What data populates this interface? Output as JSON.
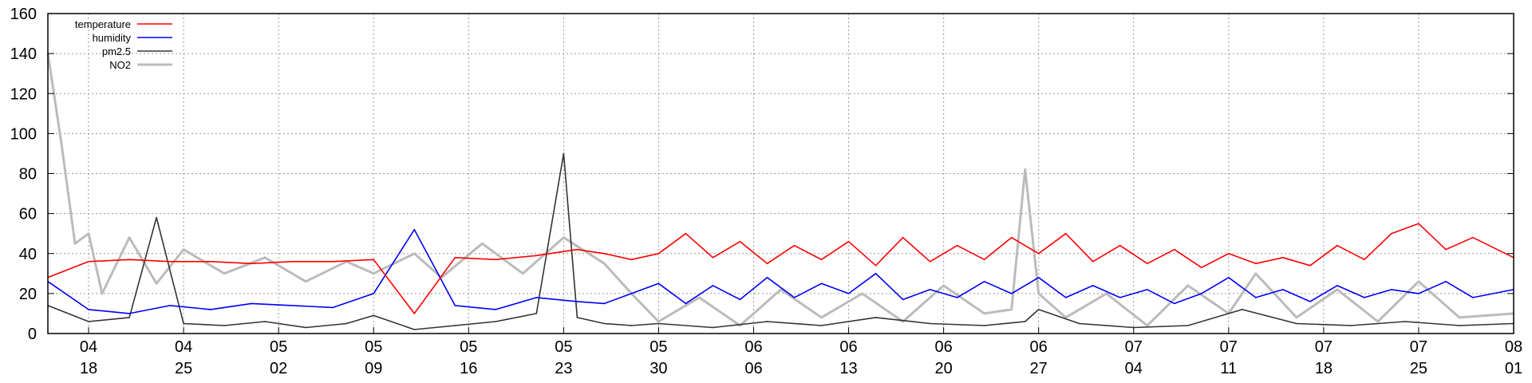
{
  "chart_data": {
    "type": "line",
    "title": "",
    "xlabel": "",
    "ylabel": "",
    "ylim": [
      0,
      160
    ],
    "y_ticks": [
      "0",
      "20",
      "40",
      "60",
      "80",
      "100",
      "120",
      "140",
      "160"
    ],
    "x_domain": [
      "2021-04-15",
      "2021-08-01"
    ],
    "x_ticks": [
      {
        "date": "2021-04-18",
        "month": "04",
        "day": "18"
      },
      {
        "date": "2021-04-25",
        "month": "04",
        "day": "25"
      },
      {
        "date": "2021-05-02",
        "month": "05",
        "day": "02"
      },
      {
        "date": "2021-05-09",
        "month": "05",
        "day": "09"
      },
      {
        "date": "2021-05-16",
        "month": "05",
        "day": "16"
      },
      {
        "date": "2021-05-23",
        "month": "05",
        "day": "23"
      },
      {
        "date": "2021-05-30",
        "month": "05",
        "day": "30"
      },
      {
        "date": "2021-06-06",
        "month": "06",
        "day": "06"
      },
      {
        "date": "2021-06-13",
        "month": "06",
        "day": "13"
      },
      {
        "date": "2021-06-20",
        "month": "06",
        "day": "20"
      },
      {
        "date": "2021-06-27",
        "month": "06",
        "day": "27"
      },
      {
        "date": "2021-07-04",
        "month": "07",
        "day": "04"
      },
      {
        "date": "2021-07-11",
        "month": "07",
        "day": "11"
      },
      {
        "date": "2021-07-18",
        "month": "07",
        "day": "18"
      },
      {
        "date": "2021-07-25",
        "month": "07",
        "day": "25"
      },
      {
        "date": "2021-08-01",
        "month": "08",
        "day": "01"
      }
    ],
    "grid": true,
    "legend_position": "top-left",
    "series": [
      {
        "name": "temperature",
        "color": "#ff0000",
        "x": [
          "2021-04-15",
          "2021-04-18",
          "2021-04-21",
          "2021-04-24",
          "2021-04-27",
          "2021-04-30",
          "2021-05-03",
          "2021-05-06",
          "2021-05-09",
          "2021-05-12",
          "2021-05-15",
          "2021-05-18",
          "2021-05-21",
          "2021-05-24",
          "2021-05-26",
          "2021-05-28",
          "2021-05-30",
          "2021-06-01",
          "2021-06-03",
          "2021-06-05",
          "2021-06-07",
          "2021-06-09",
          "2021-06-11",
          "2021-06-13",
          "2021-06-15",
          "2021-06-17",
          "2021-06-19",
          "2021-06-21",
          "2021-06-23",
          "2021-06-25",
          "2021-06-27",
          "2021-06-29",
          "2021-07-01",
          "2021-07-03",
          "2021-07-05",
          "2021-07-07",
          "2021-07-09",
          "2021-07-11",
          "2021-07-13",
          "2021-07-15",
          "2021-07-17",
          "2021-07-19",
          "2021-07-21",
          "2021-07-23",
          "2021-07-25",
          "2021-07-27",
          "2021-07-29",
          "2021-08-01"
        ],
        "values": [
          28,
          36,
          37,
          36,
          36,
          35,
          36,
          36,
          37,
          10,
          38,
          37,
          39,
          42,
          40,
          37,
          40,
          50,
          38,
          46,
          35,
          44,
          37,
          46,
          34,
          48,
          36,
          44,
          37,
          48,
          40,
          50,
          36,
          44,
          35,
          42,
          33,
          40,
          35,
          38,
          34,
          44,
          37,
          50,
          55,
          42,
          48,
          38
        ]
      },
      {
        "name": "humidity",
        "color": "#0000ff",
        "x": [
          "2021-04-15",
          "2021-04-18",
          "2021-04-21",
          "2021-04-24",
          "2021-04-27",
          "2021-04-30",
          "2021-05-03",
          "2021-05-06",
          "2021-05-09",
          "2021-05-12",
          "2021-05-15",
          "2021-05-18",
          "2021-05-21",
          "2021-05-24",
          "2021-05-26",
          "2021-05-28",
          "2021-05-30",
          "2021-06-01",
          "2021-06-03",
          "2021-06-05",
          "2021-06-07",
          "2021-06-09",
          "2021-06-11",
          "2021-06-13",
          "2021-06-15",
          "2021-06-17",
          "2021-06-19",
          "2021-06-21",
          "2021-06-23",
          "2021-06-25",
          "2021-06-27",
          "2021-06-29",
          "2021-07-01",
          "2021-07-03",
          "2021-07-05",
          "2021-07-07",
          "2021-07-09",
          "2021-07-11",
          "2021-07-13",
          "2021-07-15",
          "2021-07-17",
          "2021-07-19",
          "2021-07-21",
          "2021-07-23",
          "2021-07-25",
          "2021-07-27",
          "2021-07-29",
          "2021-08-01"
        ],
        "values": [
          26,
          12,
          10,
          14,
          12,
          15,
          14,
          13,
          20,
          52,
          14,
          12,
          18,
          16,
          15,
          20,
          25,
          15,
          24,
          17,
          28,
          18,
          25,
          20,
          30,
          17,
          22,
          18,
          26,
          20,
          28,
          18,
          24,
          18,
          22,
          15,
          20,
          28,
          18,
          22,
          16,
          24,
          18,
          22,
          20,
          26,
          18,
          22
        ]
      },
      {
        "name": "pm2.5",
        "color": "#333333",
        "x": [
          "2021-04-15",
          "2021-04-18",
          "2021-04-21",
          "2021-04-23",
          "2021-04-25",
          "2021-04-28",
          "2021-05-01",
          "2021-05-04",
          "2021-05-07",
          "2021-05-09",
          "2021-05-12",
          "2021-05-15",
          "2021-05-18",
          "2021-05-21",
          "2021-05-23",
          "2021-05-24",
          "2021-05-26",
          "2021-05-28",
          "2021-05-30",
          "2021-06-03",
          "2021-06-07",
          "2021-06-11",
          "2021-06-15",
          "2021-06-19",
          "2021-06-23",
          "2021-06-26",
          "2021-06-27",
          "2021-06-30",
          "2021-07-04",
          "2021-07-08",
          "2021-07-12",
          "2021-07-16",
          "2021-07-20",
          "2021-07-24",
          "2021-07-28",
          "2021-08-01"
        ],
        "values": [
          14,
          6,
          8,
          58,
          5,
          4,
          6,
          3,
          5,
          9,
          2,
          4,
          6,
          10,
          90,
          8,
          5,
          4,
          5,
          3,
          6,
          4,
          8,
          5,
          4,
          6,
          12,
          5,
          3,
          4,
          12,
          5,
          4,
          6,
          4,
          5
        ]
      },
      {
        "name": "NO2",
        "color": "#bbbbbb",
        "x": [
          "2021-04-15",
          "2021-04-16",
          "2021-04-17",
          "2021-04-18",
          "2021-04-19",
          "2021-04-21",
          "2021-04-23",
          "2021-04-25",
          "2021-04-28",
          "2021-05-01",
          "2021-05-04",
          "2021-05-07",
          "2021-05-09",
          "2021-05-12",
          "2021-05-14",
          "2021-05-17",
          "2021-05-20",
          "2021-05-23",
          "2021-05-26",
          "2021-05-28",
          "2021-05-30",
          "2021-06-02",
          "2021-06-05",
          "2021-06-08",
          "2021-06-11",
          "2021-06-14",
          "2021-06-17",
          "2021-06-20",
          "2021-06-23",
          "2021-06-25",
          "2021-06-26",
          "2021-06-27",
          "2021-06-29",
          "2021-07-02",
          "2021-07-05",
          "2021-07-08",
          "2021-07-11",
          "2021-07-13",
          "2021-07-16",
          "2021-07-19",
          "2021-07-22",
          "2021-07-25",
          "2021-07-28",
          "2021-08-01"
        ],
        "values": [
          140,
          95,
          45,
          50,
          20,
          48,
          25,
          42,
          30,
          38,
          26,
          36,
          30,
          40,
          28,
          45,
          30,
          48,
          35,
          20,
          6,
          18,
          4,
          22,
          8,
          20,
          6,
          24,
          10,
          12,
          82,
          20,
          8,
          20,
          4,
          24,
          10,
          30,
          8,
          22,
          6,
          26,
          8,
          10
        ]
      }
    ]
  }
}
